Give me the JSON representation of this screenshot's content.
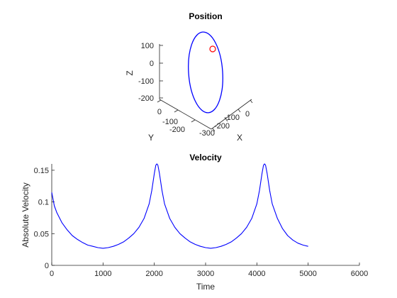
{
  "chart_data": [
    {
      "type": "line3d",
      "title": "Position",
      "xlabel": "X",
      "ylabel": "Y",
      "zlabel": "Z",
      "x_ticks": [
        "-300",
        "-200",
        "-100",
        "0"
      ],
      "y_ticks": [
        "-200",
        "-100",
        "0"
      ],
      "z_ticks": [
        "100",
        "0",
        "-100",
        "-200"
      ],
      "xlim": [
        -330,
        30
      ],
      "ylim": [
        -230,
        30
      ],
      "zlim": [
        -230,
        130
      ],
      "grid": false,
      "series": [
        {
          "style": "line",
          "color": "#0000ff",
          "description": "closed elliptical orbit",
          "z_range": [
            -200,
            130
          ]
        },
        {
          "style": "marker",
          "marker": "circle",
          "color": "#ff0000",
          "description": "current position"
        }
      ]
    },
    {
      "type": "line",
      "title": "Velocity",
      "xlabel": "Time",
      "ylabel": "Absolute Velocity",
      "xlim": [
        0,
        6000
      ],
      "ylim": [
        0,
        0.16
      ],
      "x_ticks": [
        0,
        1000,
        2000,
        3000,
        4000,
        5000,
        6000
      ],
      "y_ticks": [
        0,
        0.05,
        0.1,
        0.15
      ],
      "y_tick_labels": [
        "0",
        "0.05",
        "0.1",
        "0.15"
      ],
      "grid": false,
      "series": [
        {
          "color": "#0000ff",
          "x": [
            0,
            50,
            100,
            200,
            300,
            400,
            500,
            600,
            700,
            800,
            900,
            1000,
            1100,
            1200,
            1300,
            1400,
            1500,
            1600,
            1700,
            1800,
            1900,
            1950,
            2000,
            2030,
            2050,
            2070,
            2100,
            2150,
            2200,
            2300,
            2400,
            2500,
            2600,
            2700,
            2800,
            2900,
            3000,
            3100,
            3200,
            3300,
            3400,
            3500,
            3600,
            3700,
            3800,
            3900,
            4000,
            4050,
            4100,
            4130,
            4150,
            4170,
            4200,
            4250,
            4300,
            4400,
            4500,
            4600,
            4700,
            4800,
            4900,
            5000
          ],
          "values": [
            0.115,
            0.094,
            0.083,
            0.067,
            0.056,
            0.047,
            0.041,
            0.036,
            0.032,
            0.03,
            0.028,
            0.027,
            0.028,
            0.03,
            0.033,
            0.037,
            0.043,
            0.05,
            0.06,
            0.074,
            0.097,
            0.118,
            0.145,
            0.158,
            0.16,
            0.158,
            0.145,
            0.118,
            0.097,
            0.074,
            0.06,
            0.05,
            0.043,
            0.037,
            0.033,
            0.03,
            0.028,
            0.027,
            0.028,
            0.03,
            0.033,
            0.037,
            0.043,
            0.05,
            0.06,
            0.074,
            0.097,
            0.118,
            0.145,
            0.158,
            0.16,
            0.158,
            0.145,
            0.118,
            0.097,
            0.074,
            0.058,
            0.047,
            0.04,
            0.035,
            0.032,
            0.03
          ]
        }
      ]
    }
  ]
}
